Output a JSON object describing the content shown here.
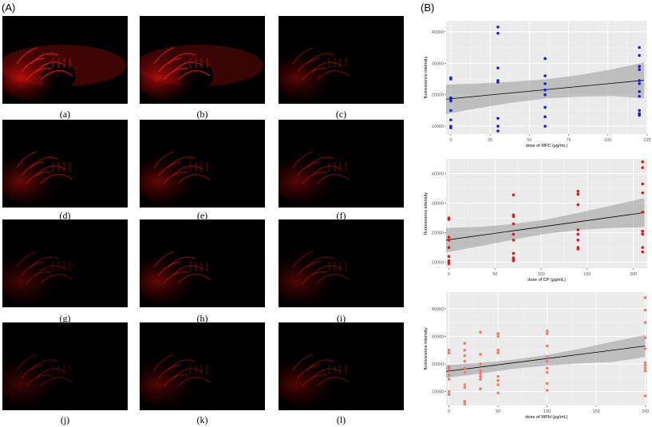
{
  "panels": {
    "a_label": "(A)",
    "b_label": "(B)"
  },
  "images": [
    {
      "caption": "(a)",
      "intensity": 1.0
    },
    {
      "caption": "(b)",
      "intensity": 0.9
    },
    {
      "caption": "(c)",
      "intensity": 0.5
    },
    {
      "caption": "(d)",
      "intensity": 0.6
    },
    {
      "caption": "(e)",
      "intensity": 0.55
    },
    {
      "caption": "(f)",
      "intensity": 0.5
    },
    {
      "caption": "(g)",
      "intensity": 0.4
    },
    {
      "caption": "(h)",
      "intensity": 0.55
    },
    {
      "caption": "(i)",
      "intensity": 0.45
    },
    {
      "caption": "(j)",
      "intensity": 0.35
    },
    {
      "caption": "(k)",
      "intensity": 0.45
    },
    {
      "caption": "(l)",
      "intensity": 0.45
    }
  ],
  "chart_data": [
    {
      "type": "scatter",
      "xlabel": "dose of MPC (μg/mL)",
      "ylabel": "fluorescence intensity",
      "xlim": [
        -3,
        125
      ],
      "ylim": [
        7500,
        43500
      ],
      "xticks": [
        0,
        25,
        50,
        75,
        100,
        125
      ],
      "yticks": [
        10000,
        20000,
        30000,
        40000
      ],
      "grid": true,
      "point_color": "#1c1cd9",
      "x": [
        0,
        0,
        0,
        0,
        0,
        0,
        0,
        0,
        0,
        30,
        30,
        30,
        30,
        30,
        30,
        30,
        30,
        60,
        60,
        60,
        60,
        60,
        60,
        60,
        60,
        120,
        120,
        120,
        120,
        120,
        120,
        120,
        120,
        120,
        120,
        120
      ],
      "y": [
        25400,
        25000,
        19000,
        18500,
        18000,
        15000,
        12000,
        10000,
        9500,
        41500,
        39500,
        28500,
        24000,
        24500,
        12500,
        10000,
        8500,
        31500,
        26000,
        23500,
        21500,
        20000,
        16000,
        13000,
        10000,
        35000,
        32500,
        29000,
        28000,
        24500,
        23500,
        21000,
        19500,
        15000,
        14000,
        13500
      ],
      "fit": {
        "x": [
          -3,
          123
        ],
        "y": [
          18600,
          24600
        ]
      },
      "ci_upper": [
        23200,
        23600,
        24100,
        24900,
        26200,
        28000,
        30300
      ],
      "ci_lower": [
        13900,
        15800,
        17500,
        18800,
        19400,
        19600,
        18900
      ]
    },
    {
      "type": "scatter",
      "xlabel": "dose of CP (μg/mL)",
      "ylabel": "fluorescence intensity",
      "xlim": [
        -3,
        215
      ],
      "ylim": [
        8000,
        45000
      ],
      "xticks": [
        0,
        50,
        100,
        150,
        200
      ],
      "yticks": [
        10000,
        20000,
        30000,
        40000
      ],
      "grid": true,
      "point_color": "#e01919",
      "x": [
        0,
        0,
        0,
        0,
        0,
        0,
        0,
        0,
        0,
        70,
        70,
        70,
        70,
        70,
        70,
        70,
        70,
        70,
        70,
        140,
        140,
        140,
        140,
        140,
        140,
        140,
        140,
        210,
        210,
        210,
        210,
        210,
        210,
        210,
        210,
        210
      ],
      "y": [
        25000,
        24500,
        18500,
        17500,
        15000,
        12000,
        10500,
        10000,
        9500,
        32800,
        26000,
        25500,
        23000,
        19500,
        17500,
        13000,
        11500,
        11000,
        10500,
        34000,
        33000,
        29500,
        21000,
        19500,
        17500,
        15000,
        14500,
        44000,
        42000,
        36500,
        33500,
        27000,
        20500,
        19500,
        15000,
        13500
      ],
      "fit": {
        "x": [
          -3,
          212
        ],
        "y": [
          17500,
          26800
        ]
      },
      "ci_upper": [
        21600,
        22000,
        22900,
        24400,
        26700,
        29200,
        31700
      ],
      "ci_lower": [
        13300,
        15400,
        17600,
        19600,
        20900,
        21600,
        21900
      ]
    },
    {
      "type": "scatter",
      "xlabel": "dose of WPH (μg/mL)",
      "ylabel": "fluorescence intensity",
      "xlim": [
        -3,
        202
      ],
      "ylim": [
        5000,
        46000
      ],
      "xticks": [
        0,
        50,
        100,
        150,
        200
      ],
      "yticks": [
        10000,
        20000,
        30000,
        40000
      ],
      "grid": true,
      "point_color": "#f27a6b",
      "x": [
        0,
        0,
        0,
        0,
        0,
        0,
        0,
        0,
        0,
        16,
        16,
        16,
        16,
        16,
        16,
        16,
        16,
        16,
        16,
        32,
        32,
        32,
        32,
        32,
        32,
        32,
        32,
        50,
        50,
        50,
        50,
        50,
        50,
        50,
        50,
        100,
        100,
        100,
        100,
        100,
        100,
        100,
        100,
        100,
        200,
        200,
        200,
        200,
        200,
        200,
        200,
        200,
        200,
        200
      ],
      "y": [
        25000,
        24000,
        19000,
        18500,
        18000,
        16000,
        14500,
        10000,
        9000,
        27500,
        25000,
        23000,
        21000,
        18500,
        17000,
        12500,
        11500,
        6500,
        5500,
        31500,
        23500,
        20000,
        17500,
        16500,
        15500,
        14500,
        11000,
        31000,
        30000,
        25000,
        24000,
        15500,
        14000,
        12500,
        9500,
        32000,
        31000,
        26500,
        22500,
        21000,
        18500,
        17000,
        13000,
        10500,
        44000,
        39500,
        35000,
        29500,
        25500,
        20500,
        19500,
        18500,
        17500,
        8500
      ],
      "fit": {
        "x": [
          -3,
          200
        ],
        "y": [
          17300,
          26500
        ]
      },
      "ci_upper": [
        19600,
        20400,
        21500,
        23200,
        25400,
        28000,
        30500
      ],
      "ci_lower": [
        15000,
        16500,
        18200,
        19400,
        20200,
        20700,
        22500
      ]
    }
  ]
}
